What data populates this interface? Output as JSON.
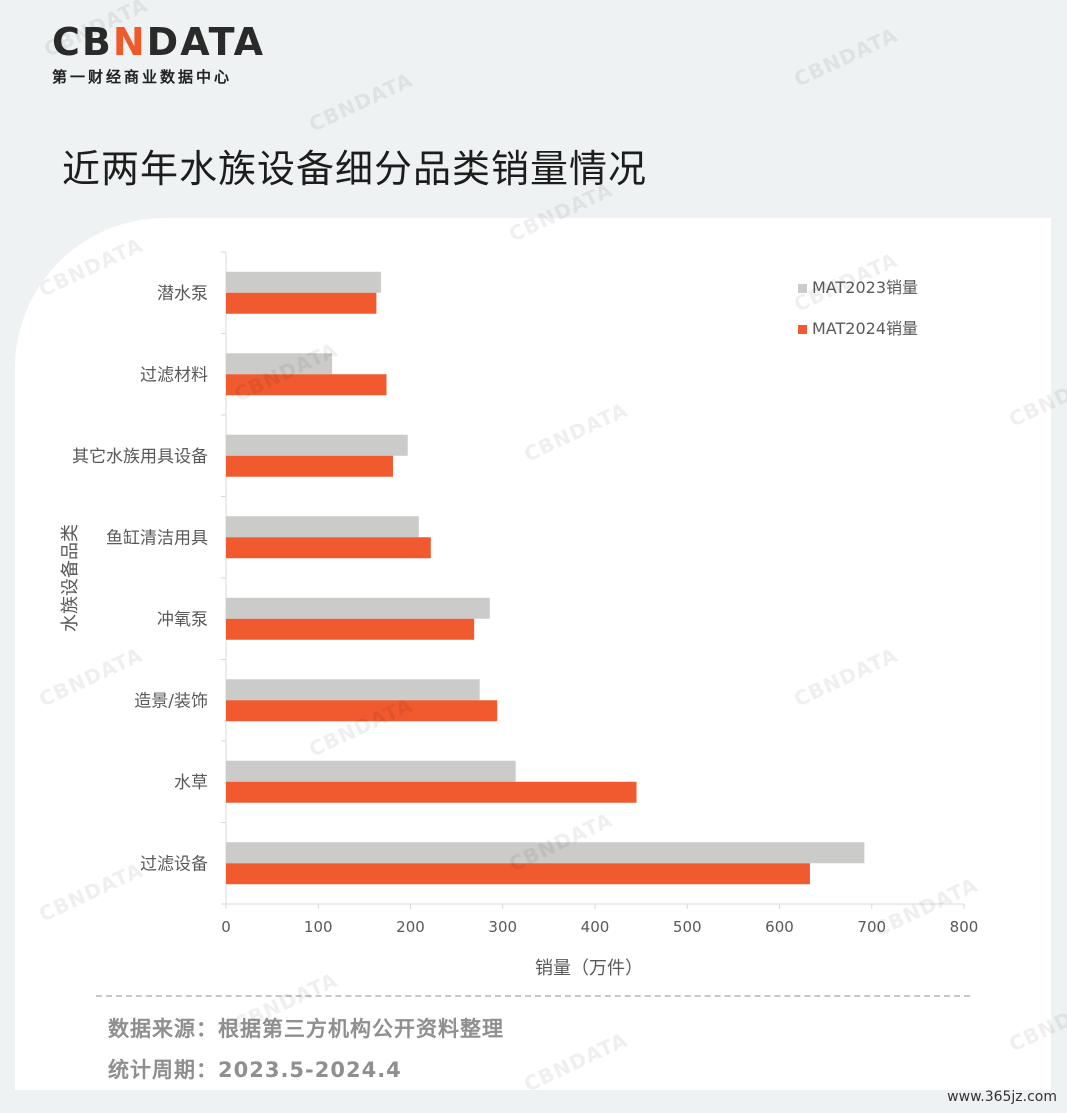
{
  "header": {
    "logo_main_1": "CB",
    "logo_main_n": "N",
    "logo_main_2": "DATA",
    "logo_sub": "第一财经商业数据中心",
    "title": "近两年水族设备细分品类销量情况"
  },
  "watermark": {
    "text": "CBNDATA"
  },
  "colors": {
    "mat2023": "#cbcbc9",
    "mat2024": "#f05a2e",
    "axis": "#d9d9d9",
    "text": "#595959"
  },
  "chart_data": {
    "type": "bar",
    "orientation": "horizontal",
    "title": "近两年水族设备细分品类销量情况",
    "xlabel": "销量（万件）",
    "ylabel": "水族设备品类",
    "xlim": [
      0,
      800
    ],
    "xticks": [
      0,
      100,
      200,
      300,
      400,
      500,
      600,
      700,
      800
    ],
    "categories": [
      "潜水泵",
      "过滤材料",
      "其它水族用具设备",
      "鱼缸清洁用具",
      "冲氧泵",
      "造景/装饰",
      "水草",
      "过滤设备"
    ],
    "series": [
      {
        "name": "MAT2023销量",
        "values": [
          168,
          115,
          197,
          209,
          286,
          275,
          314,
          692
        ]
      },
      {
        "name": "MAT2024销量",
        "values": [
          163,
          174,
          181,
          222,
          269,
          294,
          445,
          633
        ]
      }
    ],
    "legend": "top-right",
    "grid": false
  },
  "footer": {
    "source": "数据来源：根据第三方机构公开资料整理",
    "period": "统计周期：2023.5-2024.4",
    "site": "www.365jz.com"
  }
}
